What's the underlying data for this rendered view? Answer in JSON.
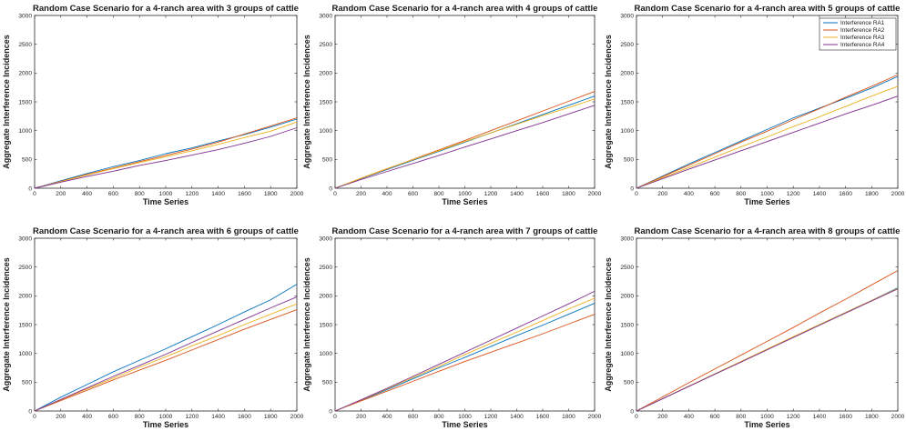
{
  "colors": {
    "RA1": "#0072BD",
    "RA2": "#D95319",
    "RA3": "#EDB120",
    "RA4": "#7E2F8E"
  },
  "chart_data": [
    {
      "type": "line",
      "title": "Random Case Scenario for a 4-ranch area with 3 groups of cattle",
      "xlabel": "Time Series",
      "ylabel": "Aggregate Interference Incidences",
      "xlim": [
        0,
        2000
      ],
      "ylim": [
        0,
        3000
      ],
      "xticks": [
        0,
        200,
        400,
        600,
        800,
        1000,
        1200,
        1400,
        1600,
        1800,
        2000
      ],
      "yticks": [
        0,
        500,
        1000,
        1500,
        2000,
        2500,
        3000
      ],
      "grid": false,
      "legend": null,
      "x": [
        0,
        200,
        400,
        600,
        800,
        1000,
        1200,
        1400,
        1600,
        1800,
        2000
      ],
      "series": [
        {
          "name": "Interference RA1",
          "values": [
            0,
            130,
            255,
            375,
            480,
            600,
            700,
            820,
            930,
            1060,
            1200
          ]
        },
        {
          "name": "Interference RA2",
          "values": [
            0,
            120,
            240,
            350,
            460,
            570,
            680,
            800,
            940,
            1080,
            1220
          ]
        },
        {
          "name": "Interference RA3",
          "values": [
            0,
            115,
            230,
            340,
            445,
            545,
            650,
            760,
            880,
            990,
            1150
          ]
        },
        {
          "name": "Interference RA4",
          "values": [
            0,
            105,
            205,
            295,
            395,
            480,
            575,
            670,
            780,
            900,
            1050
          ]
        }
      ]
    },
    {
      "type": "line",
      "title": "Random Case Scenario for a 4-ranch area with 4 groups of cattle",
      "xlabel": "Time Series",
      "ylabel": "Aggregate Interference Incidences",
      "xlim": [
        0,
        2000
      ],
      "ylim": [
        0,
        3000
      ],
      "xticks": [
        0,
        200,
        400,
        600,
        800,
        1000,
        1200,
        1400,
        1600,
        1800,
        2000
      ],
      "yticks": [
        0,
        500,
        1000,
        1500,
        2000,
        2500,
        3000
      ],
      "grid": false,
      "legend": null,
      "x": [
        0,
        200,
        400,
        600,
        800,
        1000,
        1200,
        1400,
        1600,
        1800,
        2000
      ],
      "series": [
        {
          "name": "Interference RA1",
          "values": [
            0,
            165,
            325,
            485,
            640,
            800,
            960,
            1120,
            1280,
            1440,
            1600
          ]
        },
        {
          "name": "Interference RA2",
          "values": [
            0,
            170,
            335,
            500,
            665,
            830,
            1000,
            1170,
            1340,
            1510,
            1680
          ]
        },
        {
          "name": "Interference RA3",
          "values": [
            0,
            175,
            340,
            495,
            650,
            810,
            960,
            1110,
            1260,
            1400,
            1550
          ]
        },
        {
          "name": "Interference RA4",
          "values": [
            0,
            150,
            290,
            430,
            570,
            715,
            855,
            1000,
            1140,
            1290,
            1440
          ]
        }
      ]
    },
    {
      "type": "line",
      "title": "Random Case Scenario for a 4-ranch area with 5 groups of cattle",
      "xlabel": "Time Series",
      "ylabel": "Aggregate Interference Incidences",
      "xlim": [
        0,
        2000
      ],
      "ylim": [
        0,
        3000
      ],
      "xticks": [
        0,
        200,
        400,
        600,
        800,
        1000,
        1200,
        1400,
        1600,
        1800,
        2000
      ],
      "yticks": [
        0,
        500,
        1000,
        1500,
        2000,
        2500,
        3000
      ],
      "grid": false,
      "legend": "top-right",
      "x": [
        0,
        200,
        400,
        600,
        800,
        1000,
        1200,
        1400,
        1600,
        1800,
        2000
      ],
      "series": [
        {
          "name": "Interference RA1",
          "values": [
            0,
            210,
            420,
            620,
            820,
            1020,
            1220,
            1390,
            1560,
            1740,
            1940
          ]
        },
        {
          "name": "Interference RA2",
          "values": [
            0,
            200,
            400,
            600,
            800,
            990,
            1190,
            1380,
            1580,
            1770,
            1970
          ]
        },
        {
          "name": "Interference RA3",
          "values": [
            0,
            180,
            360,
            540,
            720,
            890,
            1070,
            1240,
            1420,
            1600,
            1770
          ]
        },
        {
          "name": "Interference RA4",
          "values": [
            0,
            165,
            330,
            490,
            650,
            810,
            970,
            1130,
            1290,
            1440,
            1600
          ]
        }
      ]
    },
    {
      "type": "line",
      "title": "Random Case Scenario for a 4-ranch area with 6 groups of cattle",
      "xlabel": "Time Series",
      "ylabel": "Aggregate Interference Incidences",
      "xlim": [
        0,
        2000
      ],
      "ylim": [
        0,
        3000
      ],
      "xticks": [
        0,
        200,
        400,
        600,
        800,
        1000,
        1200,
        1400,
        1600,
        1800,
        2000
      ],
      "yticks": [
        0,
        500,
        1000,
        1500,
        2000,
        2500,
        3000
      ],
      "grid": false,
      "legend": null,
      "x": [
        0,
        200,
        400,
        600,
        800,
        1000,
        1200,
        1400,
        1600,
        1800,
        2000
      ],
      "series": [
        {
          "name": "Interference RA1",
          "values": [
            0,
            240,
            460,
            680,
            880,
            1080,
            1290,
            1500,
            1720,
            1930,
            2200
          ]
        },
        {
          "name": "Interference RA2",
          "values": [
            0,
            180,
            360,
            540,
            710,
            880,
            1060,
            1240,
            1420,
            1590,
            1760
          ]
        },
        {
          "name": "Interference RA3",
          "values": [
            0,
            195,
            385,
            570,
            760,
            940,
            1130,
            1310,
            1500,
            1680,
            1860
          ]
        },
        {
          "name": "Interference RA4",
          "values": [
            0,
            200,
            400,
            600,
            790,
            985,
            1190,
            1390,
            1590,
            1790,
            1980
          ]
        }
      ]
    },
    {
      "type": "line",
      "title": "Random Case Scenario for a 4-ranch area with 7 groups of cattle",
      "xlabel": "Time Series",
      "ylabel": "Aggregate Interference Incidences",
      "xlim": [
        0,
        2000
      ],
      "ylim": [
        0,
        3000
      ],
      "xticks": [
        0,
        200,
        400,
        600,
        800,
        1000,
        1200,
        1400,
        1600,
        1800,
        2000
      ],
      "yticks": [
        0,
        500,
        1000,
        1500,
        2000,
        2500,
        3000
      ],
      "grid": false,
      "legend": null,
      "x": [
        0,
        200,
        400,
        600,
        800,
        1000,
        1200,
        1400,
        1600,
        1800,
        2000
      ],
      "series": [
        {
          "name": "Interference RA1",
          "values": [
            0,
            185,
            370,
            560,
            750,
            930,
            1120,
            1310,
            1490,
            1680,
            1870
          ]
        },
        {
          "name": "Interference RA2",
          "values": [
            0,
            175,
            345,
            515,
            690,
            860,
            1020,
            1180,
            1340,
            1510,
            1680
          ]
        },
        {
          "name": "Interference RA3",
          "values": [
            0,
            190,
            385,
            580,
            775,
            980,
            1175,
            1370,
            1570,
            1770,
            1960
          ]
        },
        {
          "name": "Interference RA4",
          "values": [
            0,
            195,
            395,
            600,
            810,
            1020,
            1230,
            1440,
            1650,
            1860,
            2080
          ]
        }
      ]
    },
    {
      "type": "line",
      "title": "Random Case Scenario for a 4-ranch area with 8 groups of cattle",
      "xlabel": "Time Series",
      "ylabel": "Aggregate Interference Incidences",
      "xlim": [
        0,
        2000
      ],
      "ylim": [
        0,
        3000
      ],
      "xticks": [
        0,
        200,
        400,
        600,
        800,
        1000,
        1200,
        1400,
        1600,
        1800,
        2000
      ],
      "yticks": [
        0,
        500,
        1000,
        1500,
        2000,
        2500,
        3000
      ],
      "grid": false,
      "legend": null,
      "x": [
        0,
        200,
        400,
        600,
        800,
        1000,
        1200,
        1400,
        1600,
        1800,
        2000
      ],
      "series": [
        {
          "name": "Interference RA1",
          "values": [
            0,
            215,
            430,
            645,
            855,
            1070,
            1285,
            1500,
            1710,
            1920,
            2140
          ]
        },
        {
          "name": "Interference RA2",
          "values": [
            0,
            245,
            490,
            730,
            970,
            1210,
            1450,
            1700,
            1940,
            2190,
            2440
          ]
        },
        {
          "name": "Interference RA3",
          "values": [
            0,
            215,
            430,
            645,
            860,
            1075,
            1290,
            1500,
            1710,
            1920,
            2130
          ]
        },
        {
          "name": "Interference RA4",
          "values": [
            0,
            212,
            425,
            638,
            850,
            1063,
            1276,
            1488,
            1700,
            1912,
            2120
          ]
        }
      ]
    }
  ]
}
